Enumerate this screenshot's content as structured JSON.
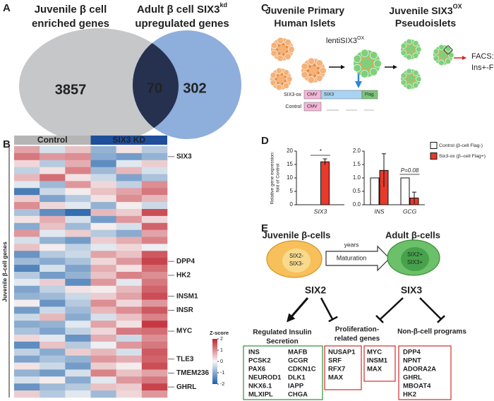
{
  "panel_letters": [
    "A",
    "B",
    "C",
    "D",
    "E"
  ],
  "venn": {
    "left_title": [
      "Juvenile β cell",
      "enriched genes"
    ],
    "right_title": {
      "line1": "Adult β cell SIX3",
      "sup": "kd",
      "line2": "upregulated genes"
    },
    "left_only": "3857",
    "both": "70",
    "right_only": "302",
    "colors": {
      "left": "#c6c7c9",
      "right": "#8eaedc",
      "both": "#26314f"
    }
  },
  "heatmap": {
    "groups": [
      {
        "name": "Control",
        "color": "#b5b5b5"
      },
      {
        "name": "SIX3 KD",
        "color": "#1f4e9c"
      }
    ],
    "row_axis_label": "Juvenile β-cell genes",
    "colors": [
      "#1c5fa8",
      "#f7f7f7",
      "#c0242f"
    ],
    "colorbar": {
      "title": "Z-score",
      "lim": [
        -2,
        2
      ],
      "ticks": [
        2,
        1,
        0,
        -1,
        -2
      ]
    },
    "values": [
      [
        0.8,
        -0.3,
        0.5,
        -0.9,
        0.2,
        -0.6
      ],
      [
        1.2,
        0.9,
        1.0,
        -1.0,
        -1.2,
        -0.9
      ],
      [
        0.3,
        -0.6,
        0.7,
        -1.4,
        -0.2,
        0.4
      ],
      [
        -0.5,
        0.2,
        1.1,
        -0.8,
        0.6,
        -0.3
      ],
      [
        0.6,
        1.3,
        0.2,
        -0.4,
        -1.1,
        -0.7
      ],
      [
        -0.2,
        -0.8,
        0.9,
        0.3,
        -0.5,
        1.0
      ],
      [
        -1.6,
        -0.4,
        0.1,
        0.5,
        0.8,
        1.2
      ],
      [
        0.4,
        -1.1,
        -0.6,
        0.2,
        1.0,
        0.6
      ],
      [
        1.0,
        0.3,
        -0.2,
        -0.9,
        0.1,
        -0.4
      ],
      [
        -0.7,
        -1.4,
        -1.8,
        0.6,
        0.4,
        1.6
      ],
      [
        0.2,
        0.7,
        -0.3,
        -1.2,
        0.9,
        0.3
      ],
      [
        -1.0,
        0.5,
        -0.8,
        0.1,
        -0.3,
        1.4
      ],
      [
        0.9,
        -0.2,
        0.4,
        -0.6,
        -1.0,
        0.8
      ],
      [
        -0.3,
        -0.9,
        -1.2,
        0.4,
        0.7,
        1.1
      ],
      [
        0.5,
        0.1,
        -0.5,
        -0.2,
        0.3,
        -0.1
      ],
      [
        -1.3,
        -0.6,
        -0.4,
        0.8,
        0.5,
        1.5
      ],
      [
        -0.8,
        -1.0,
        -0.7,
        0.3,
        0.9,
        1.7
      ],
      [
        -1.5,
        -0.3,
        -1.1,
        0.7,
        0.2,
        1.3
      ],
      [
        -0.6,
        -1.2,
        -0.9,
        0.5,
        1.1,
        1.0
      ],
      [
        -0.2,
        0.4,
        -1.4,
        0.9,
        -0.2,
        1.2
      ],
      [
        -1.1,
        -0.5,
        0.2,
        0.1,
        0.6,
        1.4
      ],
      [
        -0.9,
        -0.8,
        -0.4,
        0.4,
        0.8,
        1.6
      ],
      [
        0.1,
        -1.3,
        -0.6,
        1.0,
        0.3,
        0.9
      ],
      [
        -1.2,
        -0.4,
        -0.8,
        0.6,
        1.0,
        1.5
      ],
      [
        -0.4,
        0.6,
        -1.0,
        -0.3,
        0.5,
        1.1
      ],
      [
        -1.0,
        -0.9,
        -0.2,
        0.8,
        0.2,
        1.8
      ],
      [
        -0.7,
        -1.1,
        -0.5,
        0.3,
        1.2,
        1.3
      ],
      [
        0.3,
        -0.2,
        -1.3,
        0.7,
        -0.4,
        1.0
      ],
      [
        -1.4,
        0.5,
        -0.6,
        -0.1,
        0.9,
        1.2
      ],
      [
        -0.5,
        -1.0,
        0.4,
        0.6,
        -0.3,
        1.5
      ],
      [
        -1.1,
        -0.7,
        -0.9,
        0.9,
        0.7,
        1.4
      ],
      [
        0.2,
        -0.4,
        -1.2,
        0.4,
        0.1,
        1.6
      ],
      [
        -0.9,
        -1.2,
        -0.3,
        1.1,
        0.5,
        0.8
      ],
      [
        -0.3,
        0.1,
        -1.0,
        -0.2,
        0.9,
        1.2
      ],
      [
        -1.3,
        -0.8,
        -0.6,
        0.5,
        0.4,
        1.7
      ],
      [
        0.4,
        -0.6,
        -0.2,
        -0.8,
        0.3,
        0.9
      ]
    ],
    "row_labels": [
      null,
      {
        "text": "SIX3",
        "color": "#1f55a8"
      },
      null,
      null,
      null,
      null,
      null,
      null,
      null,
      null,
      null,
      null,
      null,
      null,
      null,
      null,
      {
        "text": "DPP4",
        "color": "#d42a2a"
      },
      null,
      {
        "text": "HK2",
        "color": "#d42a2a"
      },
      null,
      null,
      {
        "text": "INSM1",
        "color": "#d42a2a"
      },
      null,
      {
        "text": "INSR",
        "color": "#d42a2a"
      },
      null,
      null,
      {
        "text": "MYC",
        "color": "#d42a2a"
      },
      null,
      null,
      null,
      {
        "text": "TLE3",
        "color": "#d42a2a"
      },
      null,
      {
        "text": "TMEM236",
        "color": "#d42a2a"
      },
      null,
      {
        "text": "GHRL",
        "color": "#d42a2a"
      },
      null
    ]
  },
  "schematic": {
    "left_title": [
      "Juvenile Primary",
      "Human Islets"
    ],
    "right_title": {
      "line1": "Juvenile SIX3",
      "sup": "OX",
      "line2": "Pseudoislets"
    },
    "vector": {
      "text": "lentiSIX3",
      "sup": "OX"
    },
    "facs": [
      "FACS:",
      "Ins+-Flag+"
    ],
    "constructs": [
      {
        "name": "SIX3-ox",
        "parts": [
          "CMV",
          "SIX3",
          "Flag"
        ]
      },
      {
        "name": "Control",
        "parts": [
          "CMV"
        ]
      }
    ]
  },
  "chart_data": [
    {
      "type": "bar",
      "y_label": [
        "Relative gene expression:",
        "fold of Control"
      ],
      "categories": [
        "SIX3"
      ],
      "annotations": [
        "*"
      ],
      "series": [
        {
          "color": "#ffffff",
          "values": [
            null
          ]
        },
        {
          "color": "#e8392b",
          "values": [
            16
          ],
          "errors": [
            1.1
          ]
        }
      ],
      "ylim": [
        0,
        20
      ],
      "yticks": [
        0,
        5,
        10,
        15,
        20
      ]
    },
    {
      "type": "bar",
      "categories": [
        "INS",
        "GCG"
      ],
      "annotations": [
        null,
        "P=0.08"
      ],
      "series": [
        {
          "name": "Control (β-cell Flag-)",
          "color": "#ffffff",
          "values": [
            1,
            1
          ]
        },
        {
          "name": "Six3-ox (β–cell Flag+)",
          "color": "#e8392b",
          "values": [
            1.28,
            0.25
          ],
          "errors": [
            0.62,
            0.22
          ]
        }
      ],
      "ylim": [
        0,
        2
      ],
      "yticks": [
        {
          "value": 0,
          "label": "0.0"
        },
        {
          "value": 0.5,
          "label": "0.5"
        },
        {
          "value": 1,
          "label": "1.0"
        },
        {
          "value": 1.5,
          "label": "1.5"
        },
        {
          "value": 2,
          "label": "2.0"
        }
      ]
    }
  ],
  "maturation": {
    "juvenile_title": "Juvenile β-cells",
    "adult_title": "Adult β-cells",
    "juvenile_cell": [
      "SIX2-",
      "SIX3-"
    ],
    "adult_cell": [
      "SIX2+",
      "SIX3+"
    ],
    "arrow_top": "years",
    "arrow_bottom": "Maturation",
    "regulators": [
      "SIX2",
      "SIX3"
    ],
    "programs": [
      {
        "title": [
          "Regulated Insulin",
          "Secretion"
        ],
        "color": "#2f8f35",
        "boxes": [
          {
            "columns": [
              [
                "INS",
                "PCSK2",
                "PAX6",
                "NEUROD1",
                "NKX6.1",
                "MLXIPL"
              ],
              [
                "MAFB",
                "GCGR",
                "CDKN1C",
                "DLK1",
                "IAPP",
                "CHGA"
              ]
            ]
          }
        ]
      },
      {
        "title": [
          "Proliferation-",
          "related genes"
        ],
        "color": "#d42a2a",
        "boxes": [
          {
            "columns": [
              [
                "NUSAP1",
                "SRF",
                "RFX7",
                "MAX"
              ]
            ]
          },
          {
            "columns": [
              [
                "MYC",
                "INSM1",
                "MAX"
              ]
            ]
          }
        ]
      },
      {
        "title": [
          "Non-β-cell programs"
        ],
        "color": "#d42a2a",
        "boxes": [
          {
            "columns": [
              [
                "DPP4",
                "NPNT",
                "ADORA2A",
                "GHRL",
                "MBOAT4",
                "HK2"
              ]
            ]
          }
        ]
      }
    ]
  }
}
